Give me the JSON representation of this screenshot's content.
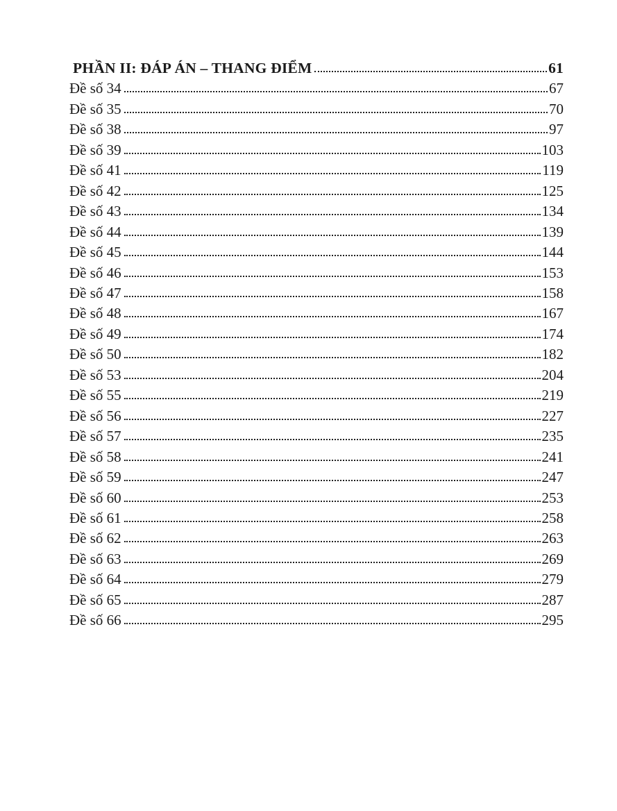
{
  "toc": {
    "heading": {
      "label": "PHẦN II: ĐÁP ÁN – THANG ĐIỂM",
      "page": "61"
    },
    "entries": [
      {
        "label": "Đề số 34",
        "page": "67"
      },
      {
        "label": "Đề số 35",
        "page": "70"
      },
      {
        "label": "Đề số 38",
        "page": "97"
      },
      {
        "label": "Đề số 39",
        "page": "103"
      },
      {
        "label": "Đề số 41",
        "page": "119"
      },
      {
        "label": "Đề số 42",
        "page": "125"
      },
      {
        "label": "Đề số 43",
        "page": "134"
      },
      {
        "label": "Đề số 44",
        "page": "139"
      },
      {
        "label": "Đề số 45",
        "page": "144"
      },
      {
        "label": "Đề số 46",
        "page": "153"
      },
      {
        "label": "Đề số 47",
        "page": "158"
      },
      {
        "label": "Đề số 48",
        "page": "167"
      },
      {
        "label": "Đề số 49",
        "page": "174"
      },
      {
        "label": "Đề số 50",
        "page": "182"
      },
      {
        "label": "Đề số 53",
        "page": "204"
      },
      {
        "label": "Đề số 55",
        "page": "219"
      },
      {
        "label": "Đề số 56",
        "page": "227"
      },
      {
        "label": "Đề số 57",
        "page": "235"
      },
      {
        "label": "Đề số 58",
        "page": "241"
      },
      {
        "label": "Đề số 59",
        "page": "247"
      },
      {
        "label": "Đề số 60",
        "page": "253"
      },
      {
        "label": "Đề số 61",
        "page": "258"
      },
      {
        "label": "Đề số 62",
        "page": "263"
      },
      {
        "label": "Đề số 63",
        "page": "269"
      },
      {
        "label": "Đề số 64",
        "page": "279"
      },
      {
        "label": "Đề số 65",
        "page": "287"
      },
      {
        "label": "Đề số 66",
        "page": "295"
      }
    ]
  }
}
